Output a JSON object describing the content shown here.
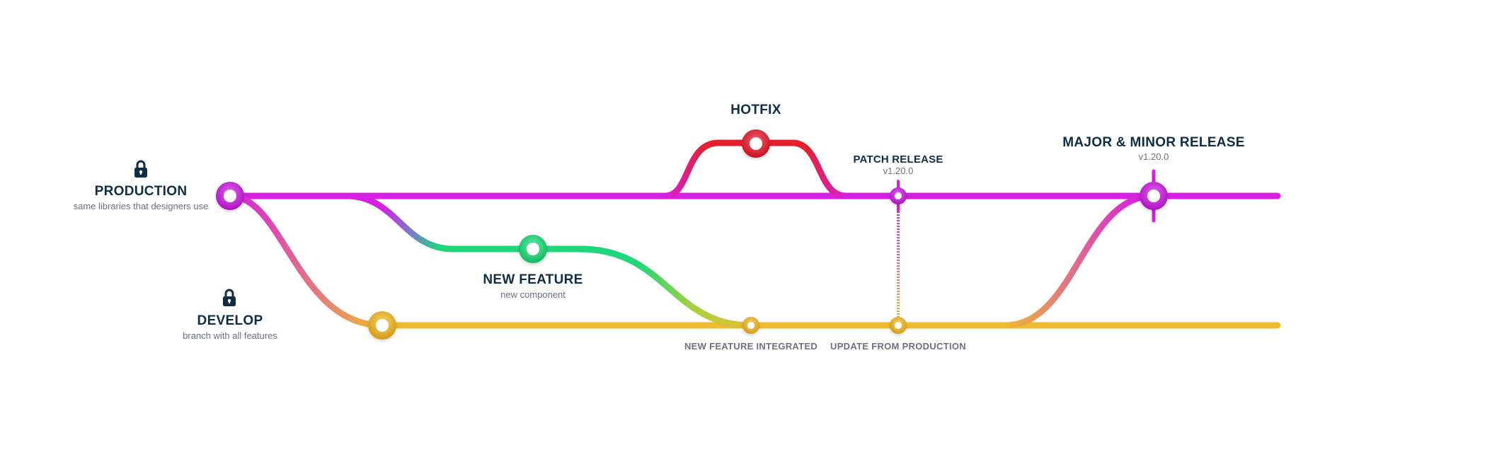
{
  "colors": {
    "production": "#d61fe0",
    "develop": "#f0bb2e",
    "feature": "#1fd67a",
    "hotfix": "#e3202c",
    "text_dark": "#0f2d44",
    "text_muted": "#6b7280"
  },
  "icons": {
    "production_lock": "lock-icon",
    "develop_lock": "lock-icon"
  },
  "branches": {
    "production": {
      "title": "PRODUCTION",
      "subtitle": "same libraries that designers use"
    },
    "develop": {
      "title": "DEVELOP",
      "subtitle": "branch with all features"
    }
  },
  "events": {
    "hotfix": {
      "title": "HOTFIX"
    },
    "new_feature": {
      "title": "NEW FEATURE",
      "subtitle": "new component"
    },
    "patch_release": {
      "title": "PATCH RELEASE",
      "version": "v1.20.0"
    },
    "major_minor_release": {
      "title": "MAJOR & MINOR RELEASE",
      "version": "v1.20.0"
    },
    "new_feature_integrated": {
      "caption": "NEW FEATURE INTEGRATED"
    },
    "update_from_production": {
      "caption": "UPDATE FROM PRODUCTION"
    }
  }
}
